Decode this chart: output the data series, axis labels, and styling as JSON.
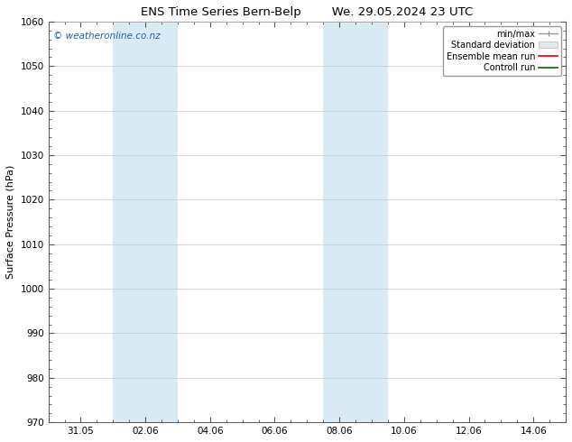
{
  "title_left": "ENS Time Series Bern-Belp",
  "title_right": "We. 29.05.2024 23 UTC",
  "ylabel": "Surface Pressure (hPa)",
  "ylim": [
    970,
    1060
  ],
  "yticks": [
    970,
    980,
    990,
    1000,
    1010,
    1020,
    1030,
    1040,
    1050,
    1060
  ],
  "xlim": [
    0,
    16
  ],
  "xtick_labels": [
    "31.05",
    "02.06",
    "04.06",
    "06.06",
    "08.06",
    "10.06",
    "12.06",
    "14.06"
  ],
  "xtick_positions": [
    1,
    3,
    5,
    7,
    9,
    11,
    13,
    15
  ],
  "shaded_regions": [
    {
      "xmin": 2.0,
      "xmax": 4.0,
      "color": "#daeaf5"
    },
    {
      "xmin": 8.5,
      "xmax": 10.5,
      "color": "#daeaf5"
    }
  ],
  "watermark_text": "© weatheronline.co.nz",
  "watermark_color": "#1a5eb8",
  "legend_entries": [
    {
      "label": "min/max",
      "color": "#999999",
      "lw": 1.0
    },
    {
      "label": "Standard deviation",
      "color": "#cccccc",
      "lw": 5
    },
    {
      "label": "Ensemble mean run",
      "color": "#dd0000",
      "lw": 1.2
    },
    {
      "label": "Controll run",
      "color": "#006600",
      "lw": 1.2
    }
  ],
  "bg_color": "#ffffff",
  "plot_bg_color": "#ffffff",
  "grid_color": "#c8c8c8",
  "axis_color": "#555555",
  "title_fontsize": 9.5,
  "label_fontsize": 8.0,
  "tick_fontsize": 7.5,
  "legend_fontsize": 7.0,
  "watermark_fontsize": 7.5,
  "font_family": "DejaVu Sans"
}
